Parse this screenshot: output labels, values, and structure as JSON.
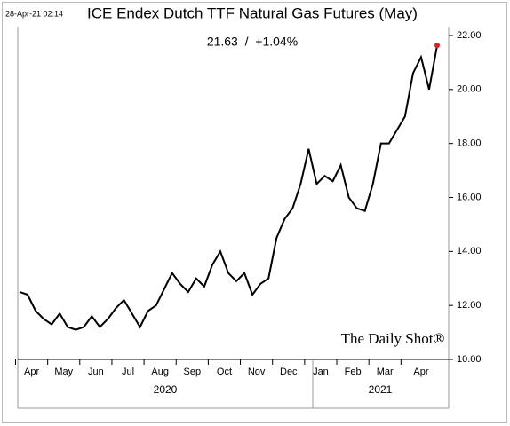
{
  "chart_data": {
    "type": "line",
    "title": "ICE Endex Dutch TTF Natural Gas Futures (May)",
    "subtitle": "21.63  /  +1.04%",
    "timestamp": "28-Apr-21 02:14",
    "watermark": "The Daily Shot®",
    "years": [
      "2020",
      "2021"
    ],
    "categories": [
      "Apr",
      null,
      null,
      null,
      "May",
      null,
      null,
      null,
      "Jun",
      null,
      null,
      null,
      "Jul",
      null,
      null,
      null,
      "Aug",
      null,
      null,
      null,
      "Sep",
      null,
      null,
      null,
      "Oct",
      null,
      null,
      null,
      "Nov",
      null,
      null,
      null,
      "Dec",
      null,
      null,
      null,
      "Jan",
      null,
      null,
      null,
      "Feb",
      null,
      null,
      null,
      "Mar",
      null,
      null,
      null,
      "Apr",
      null,
      null,
      null,
      null
    ],
    "series": [
      {
        "name": "TTF May",
        "color": "#000000",
        "values": [
          12.5,
          12.4,
          11.8,
          11.5,
          11.3,
          11.7,
          11.2,
          11.1,
          11.2,
          11.6,
          11.2,
          11.5,
          11.9,
          12.2,
          11.7,
          11.2,
          11.8,
          12.0,
          12.6,
          13.2,
          12.8,
          12.5,
          13.0,
          12.7,
          13.5,
          14.0,
          13.2,
          12.9,
          13.2,
          12.4,
          12.8,
          13.0,
          14.5,
          15.2,
          15.6,
          16.5,
          17.8,
          16.5,
          16.8,
          16.6,
          17.2,
          16.0,
          15.6,
          15.5,
          16.5,
          18.0,
          18.0,
          18.5,
          19.0,
          20.6,
          21.2,
          20.0,
          21.63
        ]
      }
    ],
    "last_color": "#e02020",
    "ylim": [
      10,
      22
    ],
    "yticks": [
      {
        "value": 10,
        "label": "10.00"
      },
      {
        "value": 12,
        "label": "12.00"
      },
      {
        "value": 14,
        "label": "14.00"
      },
      {
        "value": 16,
        "label": "16.00"
      },
      {
        "value": 18,
        "label": "18.00"
      },
      {
        "value": 20,
        "label": "20.00"
      },
      {
        "value": 22,
        "label": "22.00"
      }
    ]
  }
}
